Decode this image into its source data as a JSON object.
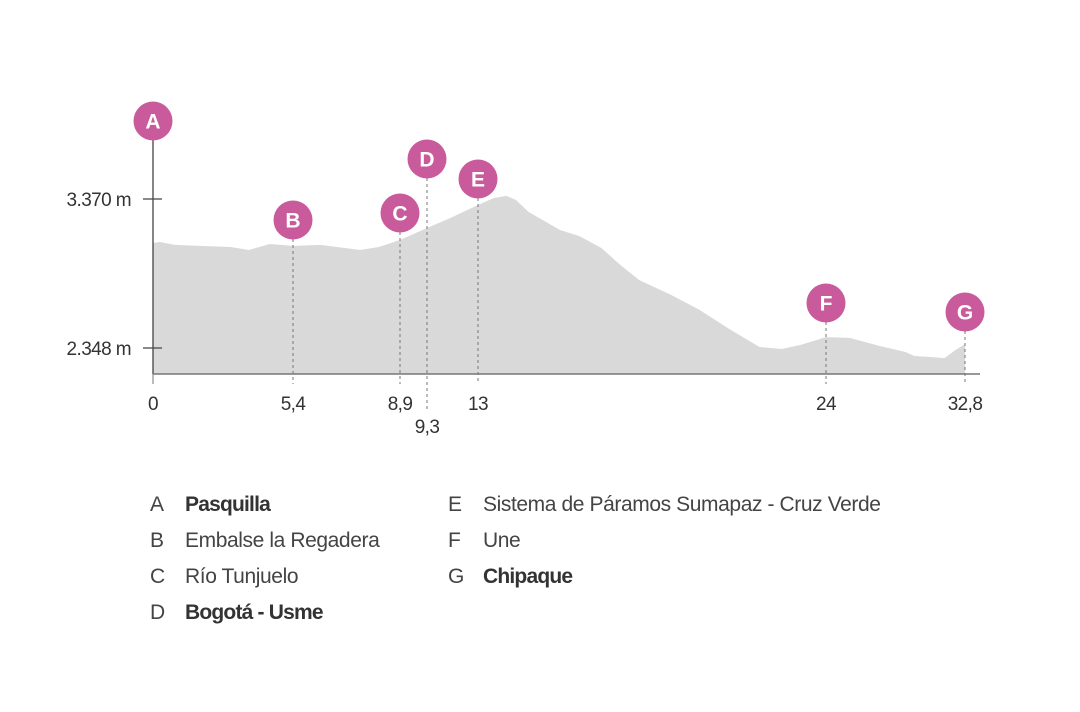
{
  "chart_data": {
    "type": "area",
    "title": "",
    "xlabel": "",
    "ylabel": "",
    "y_ticks": [
      {
        "value": 3370,
        "label": "3.370 m"
      },
      {
        "value": 2348,
        "label": "2.348 m"
      }
    ],
    "x_ticks": [
      {
        "value": 0,
        "label": "0"
      },
      {
        "value": 5.4,
        "label": "5,4"
      },
      {
        "value": 8.9,
        "label": "8,9"
      },
      {
        "value": 9.3,
        "label": "9,3"
      },
      {
        "value": 13,
        "label": "13"
      },
      {
        "value": 24,
        "label": "24"
      },
      {
        "value": 32.8,
        "label": "32,8"
      }
    ],
    "grid": false,
    "colors": {
      "area": "#d9d9d9",
      "marker": "#c95b9c",
      "axis": "#777777",
      "text": "#333333"
    },
    "profile": {
      "x_km": [
        0,
        0.27,
        0.85,
        1.8,
        3.0,
        3.7,
        4.5,
        5.4,
        6.3,
        7.6,
        8.2,
        8.9,
        9.3,
        11.0,
        13,
        13.5,
        13.9,
        14.2,
        14.6,
        15.6,
        16.2,
        16.9,
        17.5,
        18.1,
        19.1,
        20.0,
        20.5,
        21.0,
        21.9,
        22.6,
        23.2,
        24,
        25.5,
        27.4,
        29.0,
        29.6,
        30.6,
        31.5,
        32.2,
        32.8
      ],
      "elevation_m": [
        3068,
        3075,
        3055,
        3048,
        3041,
        3020,
        3061,
        3048,
        3055,
        3020,
        3041,
        3089,
        3171,
        3240,
        3329,
        3377,
        3391,
        3363,
        3281,
        3157,
        3116,
        3034,
        2917,
        2814,
        2712,
        2609,
        2540,
        2471,
        2355,
        2341,
        2369,
        2423,
        2417,
        2362,
        2321,
        2293,
        2286,
        2279,
        2334,
        2375
      ]
    },
    "markers": [
      {
        "letter": "A",
        "km": 0,
        "name": "Pasquilla",
        "bold": true
      },
      {
        "letter": "B",
        "km": 5.4,
        "name": "Embalse la Regadera",
        "bold": false
      },
      {
        "letter": "C",
        "km": 8.9,
        "name": "Río Tunjuelo",
        "bold": false
      },
      {
        "letter": "D",
        "km": 9.3,
        "name": "Bogotá - Usme",
        "bold": true
      },
      {
        "letter": "E",
        "km": 13,
        "name": "Sistema de Páramos Sumapaz - Cruz Verde",
        "bold": false
      },
      {
        "letter": "F",
        "km": 24,
        "name": "Une",
        "bold": false
      },
      {
        "letter": "G",
        "km": 32.8,
        "name": "Chipaque",
        "bold": true
      }
    ]
  }
}
